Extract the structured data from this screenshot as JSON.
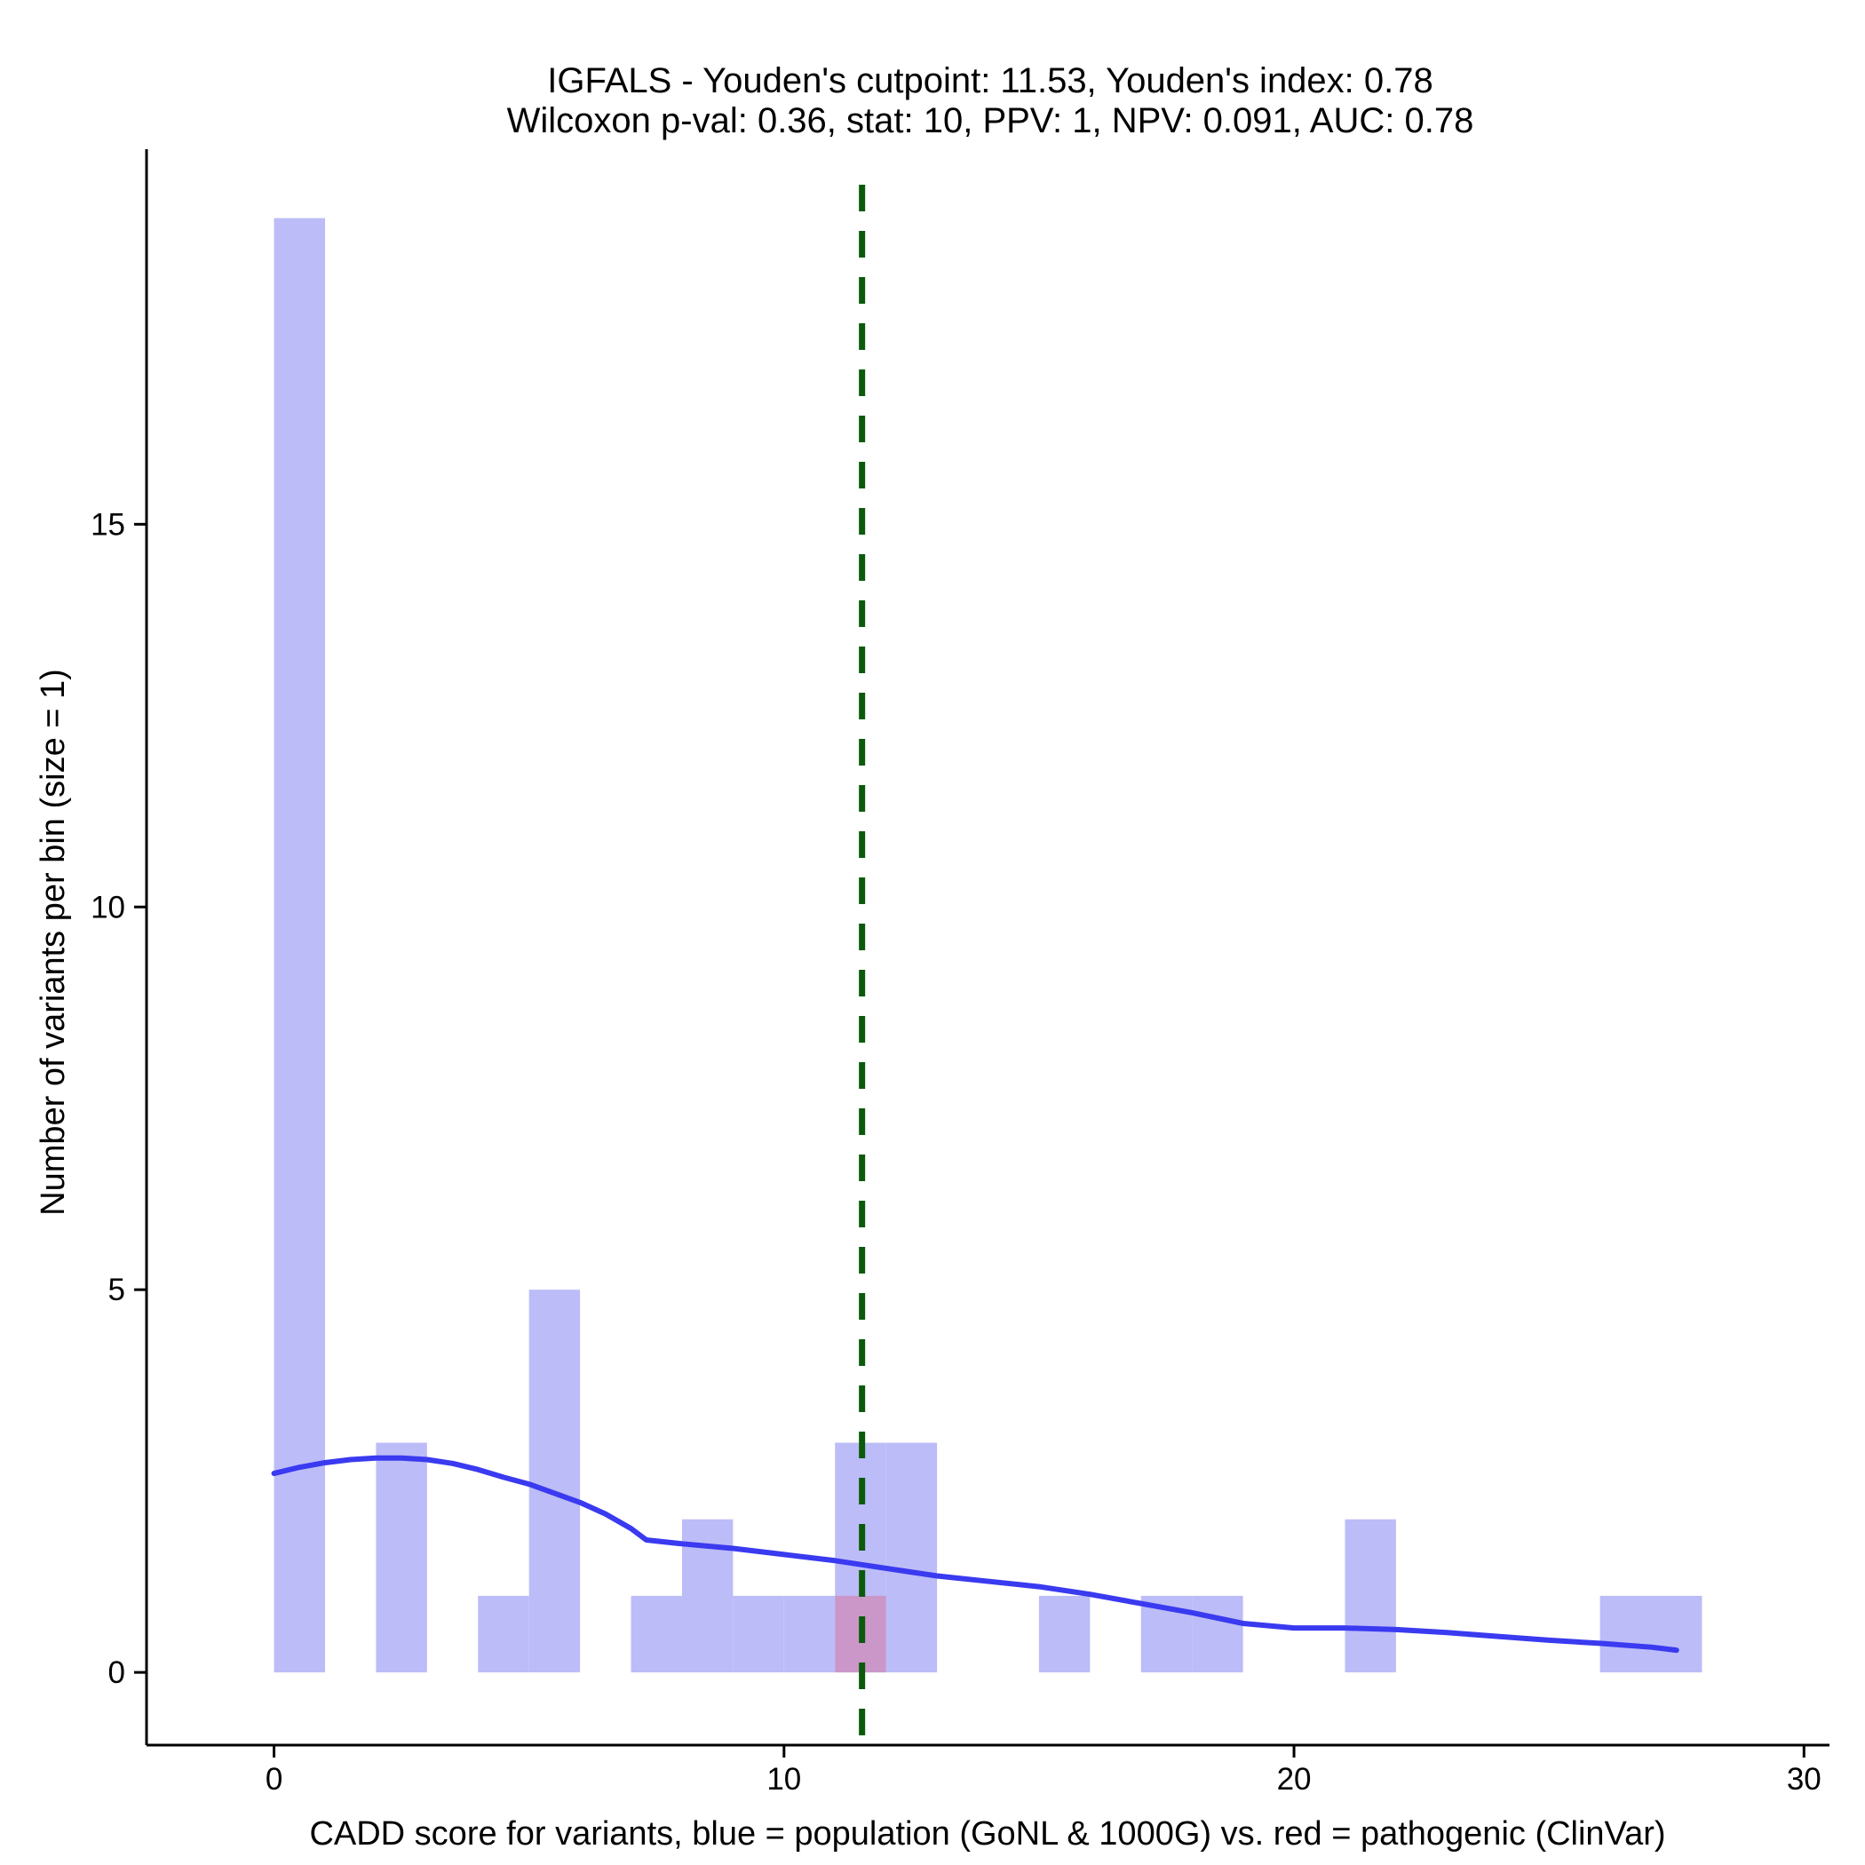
{
  "chart_data": {
    "type": "bar",
    "title_line1": "IGFALS - Youden's cutpoint: 11.53, Youden's index: 0.78",
    "title_line2": "Wilcoxon p-val: 0.36, stat: 10, PPV: 1, NPV: 0.091, AUC: 0.78",
    "xlabel": "CADD score for variants, blue = population (GoNL & 1000G) vs. red = pathogenic (ClinVar)",
    "ylabel": "Number of variants per bin (size = 1)",
    "xlim": [
      -2.5,
      30.5
    ],
    "ylim": [
      -0.95,
      19.9
    ],
    "x_ticks": [
      0,
      10,
      20,
      30
    ],
    "y_ticks": [
      0,
      5,
      10,
      15
    ],
    "bin_width": 1,
    "series": [
      {
        "name": "population (GoNL & 1000G)",
        "color": "#bcbcf8",
        "bins": [
          {
            "start": 0,
            "count": 19
          },
          {
            "start": 2,
            "count": 3
          },
          {
            "start": 4,
            "count": 1
          },
          {
            "start": 5,
            "count": 5
          },
          {
            "start": 7,
            "count": 1
          },
          {
            "start": 8,
            "count": 2
          },
          {
            "start": 9,
            "count": 1
          },
          {
            "start": 10,
            "count": 1
          },
          {
            "start": 11,
            "count": 3
          },
          {
            "start": 12,
            "count": 3
          },
          {
            "start": 15,
            "count": 1
          },
          {
            "start": 17,
            "count": 1
          },
          {
            "start": 18,
            "count": 1
          },
          {
            "start": 21,
            "count": 2
          },
          {
            "start": 26,
            "count": 1
          },
          {
            "start": 27,
            "count": 1
          }
        ]
      },
      {
        "name": "pathogenic (ClinVar)",
        "color": "#cc90c0",
        "bins": [
          {
            "start": 11,
            "count": 1
          }
        ]
      }
    ],
    "kde": {
      "name": "population density",
      "color": "#3a3af0",
      "points": [
        [
          0,
          2.6
        ],
        [
          0.5,
          2.68
        ],
        [
          1,
          2.74
        ],
        [
          1.5,
          2.78
        ],
        [
          2,
          2.8
        ],
        [
          2.5,
          2.8
        ],
        [
          3,
          2.78
        ],
        [
          3.5,
          2.73
        ],
        [
          4,
          2.65
        ],
        [
          4.5,
          2.55
        ],
        [
          5,
          2.46
        ],
        [
          5.5,
          2.34
        ],
        [
          6,
          2.22
        ],
        [
          6.5,
          2.07
        ],
        [
          7,
          1.88
        ],
        [
          7.3,
          1.73
        ],
        [
          8,
          1.68
        ],
        [
          9,
          1.62
        ],
        [
          10,
          1.54
        ],
        [
          11,
          1.46
        ],
        [
          12,
          1.36
        ],
        [
          13,
          1.26
        ],
        [
          14,
          1.19
        ],
        [
          15,
          1.12
        ],
        [
          16,
          1.02
        ],
        [
          17,
          0.9
        ],
        [
          18,
          0.78
        ],
        [
          19,
          0.64
        ],
        [
          20,
          0.58
        ],
        [
          21,
          0.58
        ],
        [
          22,
          0.56
        ],
        [
          23,
          0.52
        ],
        [
          24,
          0.47
        ],
        [
          25,
          0.42
        ],
        [
          26,
          0.38
        ],
        [
          27,
          0.33
        ],
        [
          27.5,
          0.29
        ]
      ]
    },
    "cutpoint": {
      "value": 11.53,
      "color": "#0b5a0b",
      "style": "dashed"
    }
  }
}
